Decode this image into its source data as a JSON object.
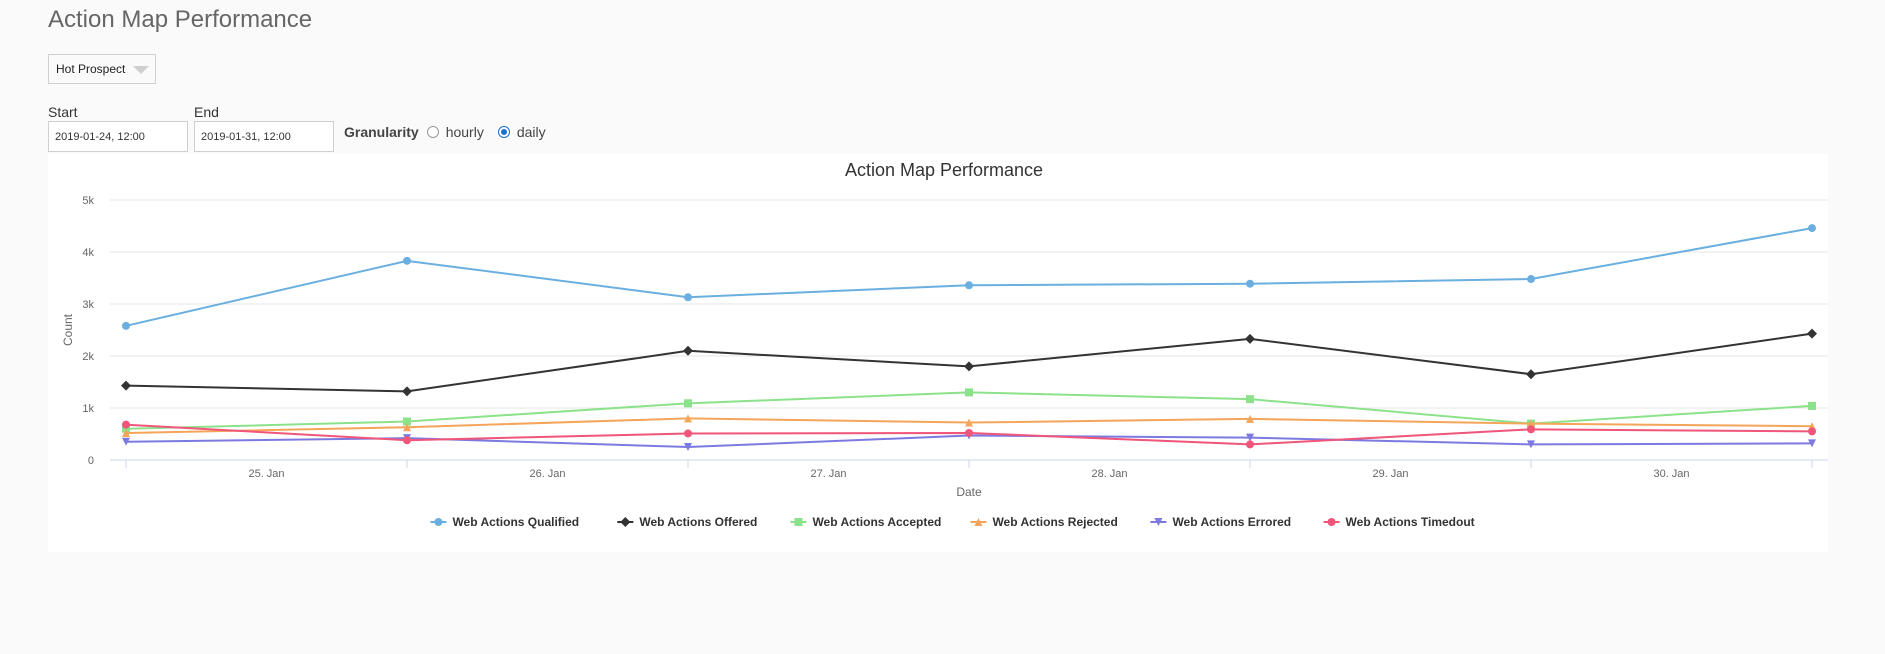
{
  "page": {
    "title": "Action Map Performance"
  },
  "filter": {
    "selected": "Hot Prospect"
  },
  "range": {
    "start_label": "Start",
    "start_value": "2019-01-24, 12:00",
    "end_label": "End",
    "end_value": "2019-01-31, 12:00"
  },
  "granularity": {
    "label": "Granularity",
    "options": [
      {
        "label": "hourly",
        "checked": false
      },
      {
        "label": "daily",
        "checked": true
      }
    ]
  },
  "chart_data": {
    "type": "line",
    "title": "Action Map Performance",
    "xlabel": "Date",
    "ylabel": "Count",
    "x_tick_labels": [
      "25. Jan",
      "26. Jan",
      "27. Jan",
      "28. Jan",
      "29. Jan",
      "30. Jan"
    ],
    "y_tick_labels": [
      "0",
      "1k",
      "2k",
      "3k",
      "4k",
      "5k"
    ],
    "ylim": [
      0,
      5000
    ],
    "x": [
      "2019-01-24 12:00",
      "2019-01-25 12:00",
      "2019-01-26 12:00",
      "2019-01-27 12:00",
      "2019-01-28 12:00",
      "2019-01-29 12:00",
      "2019-01-30 12:00"
    ],
    "grid": true,
    "legend_position": "bottom",
    "series": [
      {
        "name": "Web Actions Qualified",
        "color": "#6aafe0",
        "marker": "circle",
        "values": [
          2580,
          3830,
          3130,
          3360,
          3390,
          3480,
          4460
        ]
      },
      {
        "name": "Web Actions Offered",
        "color": "#333333",
        "marker": "diamond",
        "values": [
          1430,
          1320,
          2100,
          1800,
          2330,
          1650,
          2430
        ]
      },
      {
        "name": "Web Actions Accepted",
        "color": "#8ce28a",
        "marker": "square",
        "values": [
          600,
          740,
          1090,
          1300,
          1170,
          700,
          1040
        ]
      },
      {
        "name": "Web Actions Rejected",
        "color": "#f5a55a",
        "marker": "triangle",
        "values": [
          520,
          630,
          800,
          720,
          790,
          700,
          650
        ]
      },
      {
        "name": "Web Actions Errored",
        "color": "#7c7ae0",
        "marker": "triangle-down",
        "values": [
          350,
          420,
          250,
          470,
          430,
          300,
          320
        ]
      },
      {
        "name": "Web Actions Timedout",
        "color": "#f0557a",
        "marker": "circle",
        "values": [
          680,
          380,
          510,
          520,
          300,
          590,
          550
        ]
      }
    ]
  }
}
